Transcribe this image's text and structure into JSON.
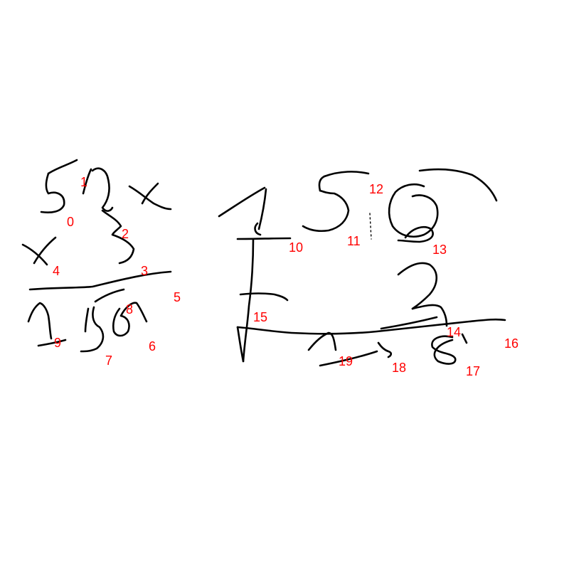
{
  "colors": {
    "background": "#ffffff",
    "ink": "#000000",
    "label": "#ff0000"
  },
  "labels": [
    "0",
    "1",
    "2",
    "3",
    "4",
    "5",
    "6",
    "7",
    "8",
    "9",
    "10",
    "11",
    "12",
    "13",
    "14",
    "15",
    "16",
    "17",
    "18",
    "19"
  ]
}
